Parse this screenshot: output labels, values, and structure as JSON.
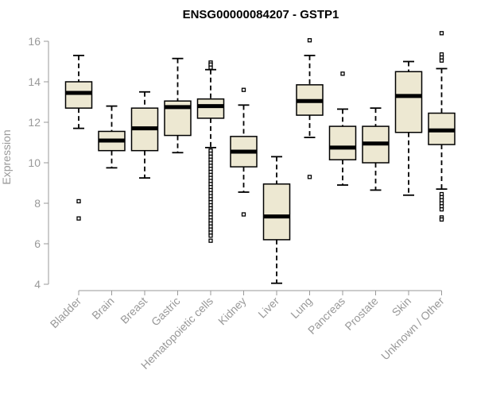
{
  "chart_data": {
    "type": "boxplot",
    "title": "ENSG00000084207 - GSTP1",
    "xlabel": "",
    "ylabel": "Expression",
    "ylim": [
      4,
      16
    ],
    "yticks": [
      4,
      6,
      8,
      10,
      12,
      14,
      16
    ],
    "grid": false,
    "colors": {
      "box_fill": "#ede8d2",
      "stroke": "#000000",
      "axis": "#999999"
    },
    "categories": [
      "Bladder",
      "Brain",
      "Breast",
      "Gastric",
      "Hematopoietic cells",
      "Kidney",
      "Liver",
      "Lung",
      "Pancreas",
      "Prostate",
      "Skin",
      "Unknown / Other"
    ],
    "series": [
      {
        "name": "Bladder",
        "whisker_low": 11.7,
        "q1": 12.7,
        "median": 13.45,
        "q3": 14.0,
        "whisker_high": 15.3,
        "outliers": [
          8.1,
          7.25
        ]
      },
      {
        "name": "Brain",
        "whisker_low": 9.75,
        "q1": 10.6,
        "median": 11.1,
        "q3": 11.55,
        "whisker_high": 12.8,
        "outliers": []
      },
      {
        "name": "Breast",
        "whisker_low": 9.25,
        "q1": 10.6,
        "median": 11.7,
        "q3": 12.7,
        "whisker_high": 13.5,
        "outliers": []
      },
      {
        "name": "Gastric",
        "whisker_low": 10.5,
        "q1": 11.35,
        "median": 12.75,
        "q3": 13.05,
        "whisker_high": 15.15,
        "outliers": []
      },
      {
        "name": "Hematopoietic cells",
        "whisker_low": 10.75,
        "q1": 12.2,
        "median": 12.8,
        "q3": 13.15,
        "whisker_high": 14.6,
        "outliers": [
          14.95,
          14.85,
          14.7,
          10.6,
          10.45,
          10.3,
          10.15,
          10.0,
          9.85,
          9.7,
          9.55,
          9.4,
          9.25,
          9.1,
          8.95,
          8.8,
          8.65,
          8.5,
          8.35,
          8.2,
          8.05,
          7.9,
          7.75,
          7.6,
          7.45,
          7.3,
          7.15,
          7.0,
          6.85,
          6.7,
          6.55,
          6.4,
          6.15
        ]
      },
      {
        "name": "Kidney",
        "whisker_low": 8.55,
        "q1": 9.8,
        "median": 10.55,
        "q3": 11.3,
        "whisker_high": 12.85,
        "outliers": [
          13.6,
          7.45
        ]
      },
      {
        "name": "Liver",
        "whisker_low": 4.05,
        "q1": 6.2,
        "median": 7.35,
        "q3": 8.95,
        "whisker_high": 10.3,
        "outliers": []
      },
      {
        "name": "Lung",
        "whisker_low": 11.25,
        "q1": 12.35,
        "median": 13.05,
        "q3": 13.85,
        "whisker_high": 15.3,
        "outliers": [
          16.05,
          9.3
        ]
      },
      {
        "name": "Pancreas",
        "whisker_low": 8.9,
        "q1": 10.15,
        "median": 10.75,
        "q3": 11.8,
        "whisker_high": 12.65,
        "outliers": [
          14.4
        ]
      },
      {
        "name": "Prostate",
        "whisker_low": 8.65,
        "q1": 10.0,
        "median": 10.95,
        "q3": 11.8,
        "whisker_high": 12.7,
        "outliers": []
      },
      {
        "name": "Skin",
        "whisker_low": 8.4,
        "q1": 11.5,
        "median": 13.3,
        "q3": 14.5,
        "whisker_high": 15.0,
        "outliers": []
      },
      {
        "name": "Unknown / Other",
        "whisker_low": 8.7,
        "q1": 10.9,
        "median": 11.6,
        "q3": 12.45,
        "whisker_high": 14.65,
        "outliers": [
          16.4,
          15.35,
          15.2,
          15.05,
          8.45,
          8.3,
          8.15,
          8.0,
          7.85,
          7.7,
          7.3,
          7.2
        ]
      }
    ]
  }
}
